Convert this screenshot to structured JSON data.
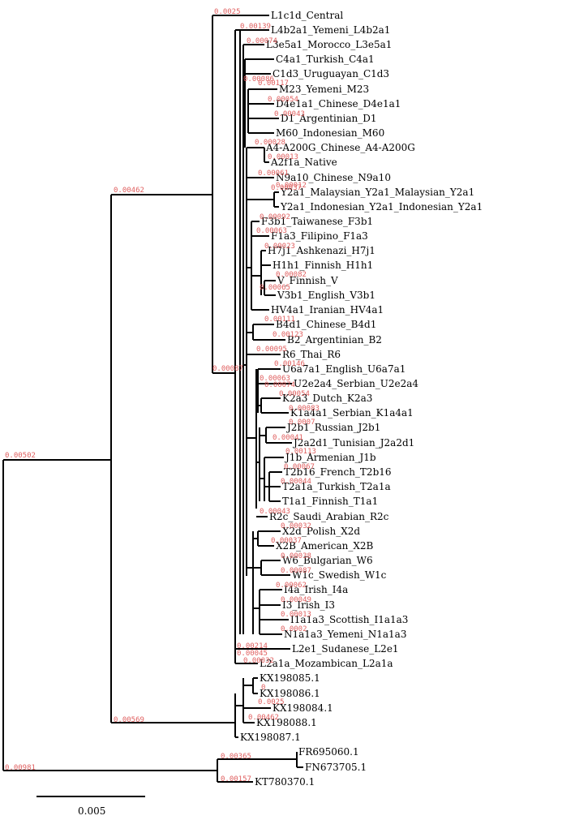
{
  "tree": {
    "label_color": "#e06060",
    "scale_bar_label": "0.005",
    "leaves": [
      "L1c1d_Central",
      "L4b2a1_Yemeni_L4b2a1",
      "L3e5a1_Morocco_L3e5a1",
      "C4a1_Turkish_C4a1",
      "C1d3_Uruguayan_C1d3",
      "M23_Yemeni_M23",
      "D4e1a1_Chinese_D4e1a1",
      "D1_Argentinian_D1",
      "M60_Indonesian_M60",
      "A4-A200G_Chinese_A4-A200G",
      "A2f1a_Native",
      "N9a10_Chinese_N9a10",
      "Y2a1_Malaysian_Y2a1_Malaysian_Y2a1",
      "Y2a1_Indonesian_Y2a1_Indonesian_Y2a1",
      "F3b1_Taiwanese_F3b1",
      "F1a3_Filipino_F1a3",
      "H7j1_Ashkenazi_H7j1",
      "H1h1_Finnish_H1h1",
      "V_Finnish_V",
      "V3b1_English_V3b1",
      "HV4a1_Iranian_HV4a1",
      "B4d1_Chinese_B4d1",
      "B2_Argentinian_B2",
      "R6_Thai_R6",
      "U6a7a1_English_U6a7a1",
      "U2e2a4_Serbian_U2e2a4",
      "K2a3_Dutch_K2a3",
      "K1a4a1_Serbian_K1a4a1",
      "J2b1_Russian_J2b1",
      "J2a2d1_Tunisian_J2a2d1",
      "J1b_Armenian_J1b",
      "T2b16_French_T2b16",
      "T2a1a_Turkish_T2a1a",
      "T1a1_Finnish_T1a1",
      "R2c_Saudi_Arabian_R2c",
      "X2d_Polish_X2d",
      "X2B_American_X2B",
      "W6_Bulgarian_W6",
      "W1c_Swedish_W1c",
      "I4a_Irish_I4a",
      "I3_Irish_I3",
      "I1a1a3_Scottish_I1a1a3",
      "N1a1a3_Yemeni_N1a1a3",
      "L2e1_Sudanese_L2e1",
      "L2a1a_Mozambican_L2a1a",
      "KX198085.1",
      "KX198086.1",
      "KX198084.1",
      "KX198088.1",
      "KX198087.1",
      "FR695060.1",
      "FN673705.1",
      "KT780370.1"
    ],
    "branch_lengths": [
      {
        "text": "0.0025"
      },
      {
        "text": "0.00462"
      },
      {
        "text": "0.00087"
      },
      {
        "text": "0.00502"
      },
      {
        "text": "0.00569"
      },
      {
        "text": "0.00981"
      },
      {
        "text": "0.00365"
      },
      {
        "text": "0.00157"
      },
      {
        "text": "0.00214"
      },
      {
        "text": "0.00045"
      },
      {
        "text": "0.00032"
      },
      {
        "text": "0.00139"
      },
      {
        "text": "0.00074"
      },
      {
        "text": "0.00117"
      },
      {
        "text": "0.00054"
      },
      {
        "text": "0.00043"
      },
      {
        "text": "0.00086"
      },
      {
        "text": "0.00028"
      },
      {
        "text": "0.00013"
      },
      {
        "text": "0.00061"
      },
      {
        "text": "0.00037"
      },
      {
        "text": "0.00092"
      },
      {
        "text": "0.00063"
      },
      {
        "text": "0.00012"
      },
      {
        "text": "0.00023"
      },
      {
        "text": "0.00082"
      },
      {
        "text": "0.00065"
      },
      {
        "text": "0.00111"
      },
      {
        "text": "0.00123"
      },
      {
        "text": "0.00095"
      },
      {
        "text": "0.00146"
      },
      {
        "text": "0.00063"
      },
      {
        "text": "0.00074"
      },
      {
        "text": "0.00054"
      },
      {
        "text": "0.00083"
      },
      {
        "text": "0.0007"
      },
      {
        "text": "0.00041"
      },
      {
        "text": "0.00113"
      },
      {
        "text": "0.00067"
      },
      {
        "text": "0.00044"
      },
      {
        "text": "0.00043"
      },
      {
        "text": "0.00032"
      },
      {
        "text": "0.00037"
      },
      {
        "text": "0.00038"
      },
      {
        "text": "0.00087"
      },
      {
        "text": "0.00062"
      },
      {
        "text": "0.00049"
      },
      {
        "text": "0.00013"
      },
      {
        "text": "0.0002"
      },
      {
        "text": "0"
      }
    ]
  }
}
